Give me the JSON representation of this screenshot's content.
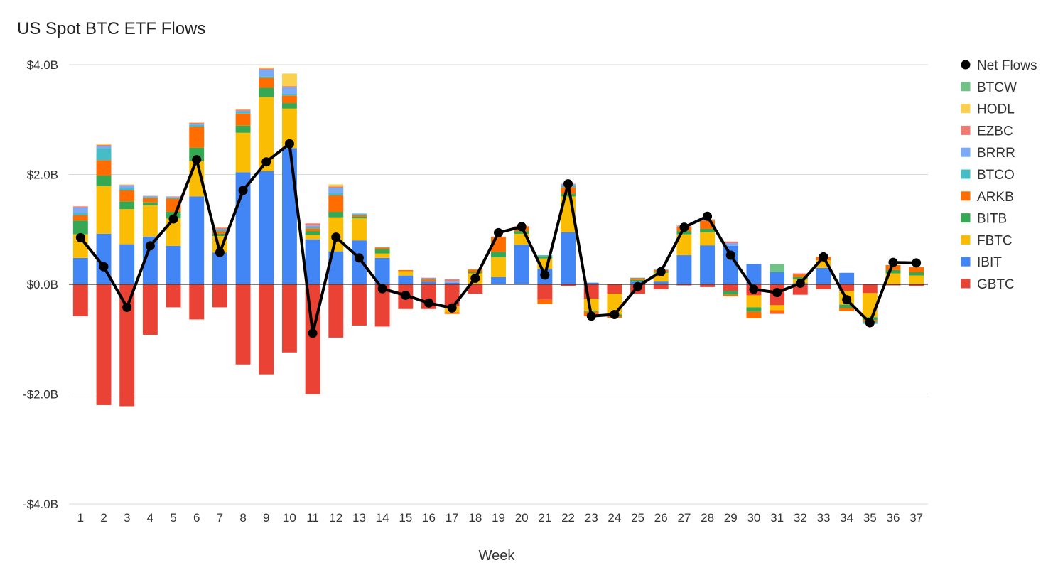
{
  "chart_data": {
    "type": "bar",
    "stacked": true,
    "title": "US Spot BTC ETF Flows",
    "xlabel": "Week",
    "ylabel": "",
    "ylim": [
      -4.0,
      4.0
    ],
    "yticks": [
      "$4.0B",
      "$2.0B",
      "$0.0B",
      "-$2.0B",
      "-$4.0B"
    ],
    "ytick_values": [
      4,
      2,
      0,
      -2,
      -4
    ],
    "grid": true,
    "legend_position": "right",
    "categories": [
      "1",
      "2",
      "3",
      "4",
      "5",
      "6",
      "7",
      "8",
      "9",
      "10",
      "11",
      "12",
      "13",
      "14",
      "15",
      "16",
      "17",
      "18",
      "19",
      "20",
      "21",
      "22",
      "23",
      "24",
      "25",
      "26",
      "27",
      "28",
      "29",
      "30",
      "31",
      "32",
      "33",
      "34",
      "35",
      "36",
      "37"
    ],
    "colors": {
      "GBTC": "#EA4335",
      "IBIT": "#4285F4",
      "FBTC": "#FBBC04",
      "BITB": "#34A853",
      "ARKB": "#FF6D01",
      "BTCO": "#46BDC6",
      "BRRR": "#7BAAF7",
      "EZBC": "#F07B72",
      "HODL": "#FCD04F",
      "BTCW": "#71C287",
      "Net Flows": "#000000"
    },
    "legend": [
      "Net Flows",
      "BTCW",
      "HODL",
      "EZBC",
      "BRRR",
      "BTCO",
      "ARKB",
      "BITB",
      "FBTC",
      "IBIT",
      "GBTC"
    ],
    "series": [
      {
        "name": "GBTC",
        "values": [
          -0.58,
          -2.2,
          -2.22,
          -0.92,
          -0.42,
          -0.64,
          -0.42,
          -1.46,
          -1.64,
          -1.24,
          -2.0,
          -0.97,
          -0.75,
          -0.77,
          -0.45,
          -0.45,
          -0.4,
          -0.17,
          0,
          0,
          -0.28,
          -0.03,
          -0.26,
          -0.17,
          -0.17,
          -0.09,
          -0.02,
          -0.05,
          -0.12,
          -0.2,
          -0.38,
          -0.19,
          -0.09,
          -0.12,
          -0.16,
          -0.02,
          -0.03
        ]
      },
      {
        "name": "IBIT",
        "values": [
          0.48,
          0.92,
          0.73,
          0.87,
          0.7,
          1.6,
          0.58,
          2.04,
          2.06,
          2.48,
          0.82,
          0.6,
          0.8,
          0.48,
          0.16,
          0.05,
          0.03,
          0,
          0.13,
          0.72,
          0.28,
          0.95,
          0.03,
          0,
          0.05,
          0.05,
          0.53,
          0.71,
          0.7,
          0.37,
          0.22,
          0.02,
          0.3,
          0.21,
          0,
          0,
          0
        ]
      },
      {
        "name": "FBTC",
        "values": [
          0.43,
          0.87,
          0.64,
          0.57,
          0.5,
          0.65,
          0.3,
          0.72,
          1.35,
          0.72,
          0.08,
          0.62,
          0.4,
          0.08,
          0.08,
          0,
          -0.11,
          0.2,
          0.36,
          0.2,
          0.19,
          0.65,
          -0.22,
          -0.38,
          0,
          0.16,
          0.38,
          0.24,
          0,
          -0.22,
          -0.09,
          0.07,
          0.14,
          -0.25,
          -0.44,
          0.2,
          0.16
        ]
      },
      {
        "name": "BITB",
        "values": [
          0.25,
          0.19,
          0.14,
          0.05,
          0.12,
          0.24,
          0.04,
          0.13,
          0.17,
          0.1,
          0.07,
          0.1,
          0.03,
          0.08,
          0,
          0,
          0,
          0.02,
          0.1,
          0.05,
          0.04,
          0.05,
          -0.02,
          -0.03,
          0.03,
          0.02,
          0.06,
          0.06,
          -0.07,
          -0.08,
          0,
          0.04,
          0,
          -0.06,
          -0.05,
          0.06,
          0.06
        ]
      },
      {
        "name": "ARKB",
        "values": [
          0.1,
          0.28,
          0.2,
          0.08,
          0.24,
          0.38,
          0.05,
          0.22,
          0.18,
          0.14,
          0.05,
          0.3,
          0.03,
          0.03,
          0.02,
          0.04,
          -0.03,
          0.05,
          0.27,
          0.08,
          -0.08,
          0.12,
          -0.08,
          -0.03,
          0.03,
          0.03,
          0.08,
          0.15,
          -0.03,
          -0.12,
          -0.05,
          0.05,
          0.06,
          -0.06,
          -0.03,
          0.09,
          0.09
        ]
      },
      {
        "name": "BTCO",
        "values": [
          0.04,
          0.22,
          0.04,
          0.02,
          0.02,
          0.03,
          0.02,
          0.03,
          0.03,
          0.03,
          0.02,
          0.04,
          0.02,
          0.01,
          0,
          0.01,
          0,
          0,
          0,
          0,
          0.02,
          0.03,
          0,
          0,
          0.01,
          0.01,
          0,
          0,
          0,
          0,
          0,
          0,
          0,
          0,
          -0.04,
          0,
          0
        ]
      },
      {
        "name": "BRRR",
        "values": [
          0.1,
          0.04,
          0.05,
          0.01,
          0.01,
          0.02,
          0.02,
          0.02,
          0.12,
          0.12,
          0.03,
          0.1,
          0.01,
          0,
          0,
          0.01,
          0.02,
          0,
          0,
          0,
          0,
          0.02,
          0,
          0,
          0,
          0,
          0.01,
          0.01,
          0.05,
          0,
          0,
          0,
          0,
          0,
          0,
          0,
          0
        ]
      },
      {
        "name": "EZBC",
        "values": [
          0.02,
          0.02,
          0.01,
          0.01,
          0.01,
          0.02,
          0.02,
          0.02,
          0.02,
          0.02,
          0.04,
          0.02,
          0,
          0,
          0,
          0.01,
          0.04,
          0,
          0.01,
          0.01,
          0,
          0.01,
          0,
          0,
          0,
          0,
          0.01,
          0.01,
          0.03,
          0,
          -0.02,
          0.02,
          0,
          0,
          0,
          0,
          0
        ]
      },
      {
        "name": "HODL",
        "values": [
          0,
          0.02,
          0.01,
          0,
          0,
          0.01,
          0.01,
          0.01,
          0.02,
          0.23,
          0,
          0.04,
          0,
          0,
          0,
          0,
          0,
          0,
          0,
          0,
          0,
          0,
          0,
          0,
          0,
          0,
          0,
          0.01,
          0,
          0,
          0,
          0,
          0,
          0,
          0,
          0,
          0
        ]
      },
      {
        "name": "BTCW",
        "values": [
          0,
          0,
          0,
          0,
          0,
          0,
          0,
          0,
          0,
          0,
          0,
          0,
          0,
          0,
          0,
          0,
          0,
          0,
          0,
          0,
          0,
          0,
          0,
          0,
          0,
          0,
          0,
          0,
          0,
          0,
          0.15,
          0,
          0,
          0,
          0,
          0,
          0
        ]
      },
      {
        "name": "Net Flows",
        "type": "line",
        "values": [
          0.85,
          0.32,
          -0.42,
          0.7,
          1.19,
          2.27,
          0.58,
          1.71,
          2.23,
          2.56,
          -0.89,
          0.86,
          0.48,
          -0.08,
          -0.2,
          -0.34,
          -0.43,
          0.11,
          0.94,
          1.05,
          0.17,
          1.83,
          -0.58,
          -0.55,
          -0.04,
          0.23,
          1.04,
          1.24,
          0.53,
          -0.09,
          -0.15,
          0.02,
          0.5,
          -0.28,
          -0.7,
          0.4,
          0.39
        ]
      }
    ]
  }
}
